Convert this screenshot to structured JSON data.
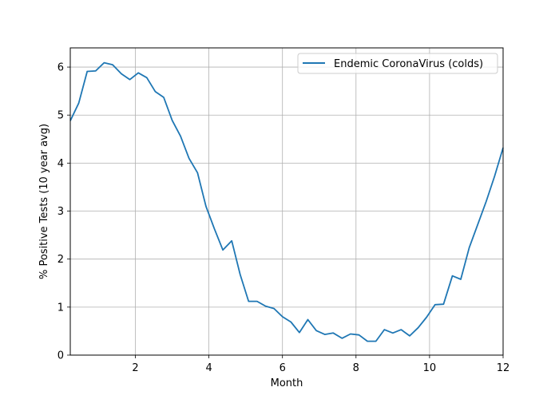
{
  "chart_data": {
    "type": "line",
    "title": "",
    "xlabel": "Month",
    "ylabel": "% Positive Tests (10 year avg)",
    "xlim": [
      0.23,
      12
    ],
    "ylim": [
      0,
      6.4
    ],
    "xticks": [
      2,
      4,
      6,
      8,
      10,
      12
    ],
    "yticks": [
      0,
      1,
      2,
      3,
      4,
      5,
      6
    ],
    "grid": true,
    "legend_position": "top-right",
    "series": [
      {
        "name": "Endemic CoronaVirus (colds)",
        "color": "#1f77b4",
        "x": [
          0.23,
          0.46,
          0.69,
          0.92,
          1.15,
          1.38,
          1.62,
          1.85,
          2.08,
          2.31,
          2.54,
          2.77,
          3.0,
          3.23,
          3.46,
          3.69,
          3.92,
          4.15,
          4.38,
          4.62,
          4.85,
          5.08,
          5.31,
          5.54,
          5.77,
          6.0,
          6.23,
          6.46,
          6.69,
          6.92,
          7.15,
          7.38,
          7.62,
          7.85,
          8.08,
          8.31,
          8.54,
          8.77,
          9.0,
          9.23,
          9.46,
          9.69,
          9.92,
          10.15,
          10.38,
          10.62,
          10.85,
          11.08,
          11.31,
          11.54,
          11.77,
          12.0
        ],
        "y": [
          4.88,
          5.25,
          5.91,
          5.92,
          6.09,
          6.05,
          5.86,
          5.74,
          5.88,
          5.78,
          5.49,
          5.37,
          4.89,
          4.56,
          4.1,
          3.8,
          3.1,
          2.63,
          2.19,
          2.38,
          1.68,
          1.12,
          1.12,
          1.02,
          0.97,
          0.8,
          0.69,
          0.47,
          0.74,
          0.51,
          0.43,
          0.46,
          0.35,
          0.44,
          0.42,
          0.29,
          0.29,
          0.53,
          0.46,
          0.53,
          0.4,
          0.57,
          0.79,
          1.05,
          1.06,
          1.65,
          1.58,
          2.24,
          2.72,
          3.2,
          3.73,
          4.32
        ]
      }
    ]
  }
}
